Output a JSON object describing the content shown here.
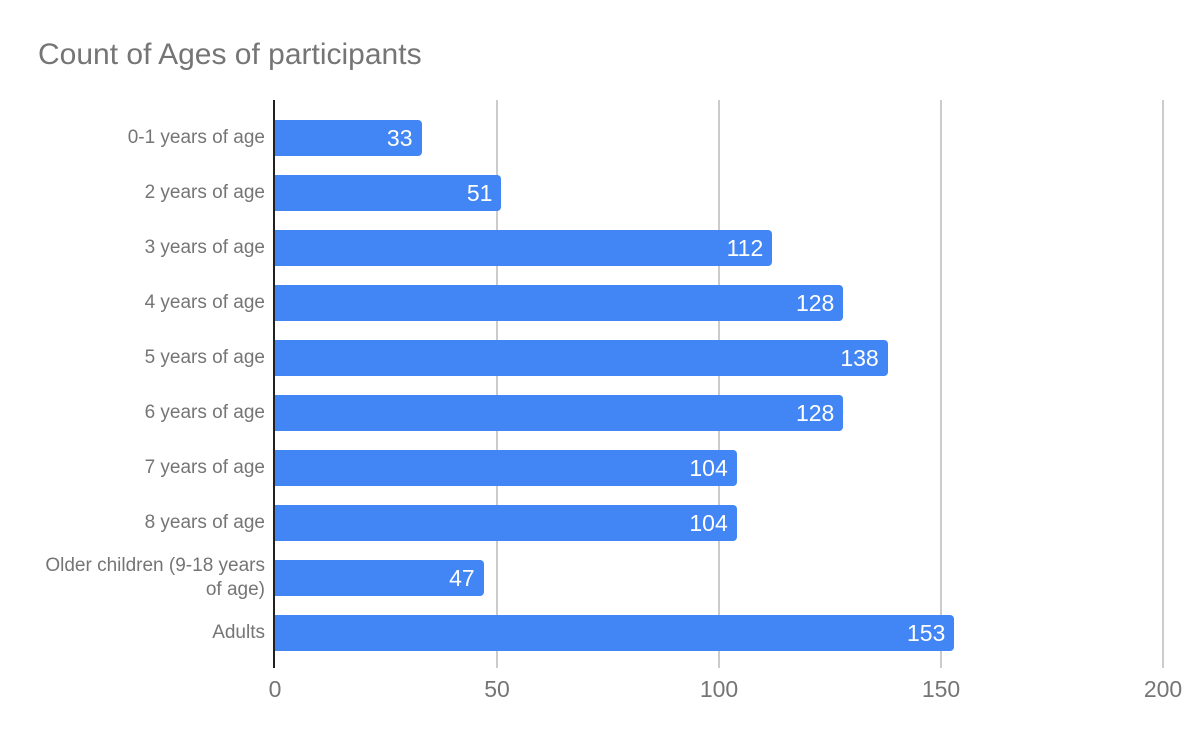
{
  "chart_data": {
    "type": "bar",
    "orientation": "horizontal",
    "title": "Count of Ages of participants",
    "categories": [
      "0-1 years of age",
      "2 years of age",
      "3 years of age",
      "4 years of age",
      "5 years of age",
      "6 years of age",
      "7 years of age",
      "8 years of age",
      "Older children (9-18 years of age)",
      "Adults"
    ],
    "values": [
      33,
      51,
      112,
      128,
      138,
      128,
      104,
      104,
      47,
      153
    ],
    "xlabel": "",
    "ylabel": "",
    "xlim": [
      0,
      200
    ],
    "x_ticks": [
      0,
      50,
      100,
      150,
      200
    ],
    "grid": true,
    "legend": "none",
    "value_labels_inside_bars": true,
    "colors": {
      "bar": "#4285f4",
      "value_label": "#ffffff",
      "title": "#757575",
      "category_label": "#757575",
      "tick_label": "#757575",
      "gridline": "#cccccc",
      "axis_line": "#212121",
      "background": "#ffffff"
    }
  }
}
